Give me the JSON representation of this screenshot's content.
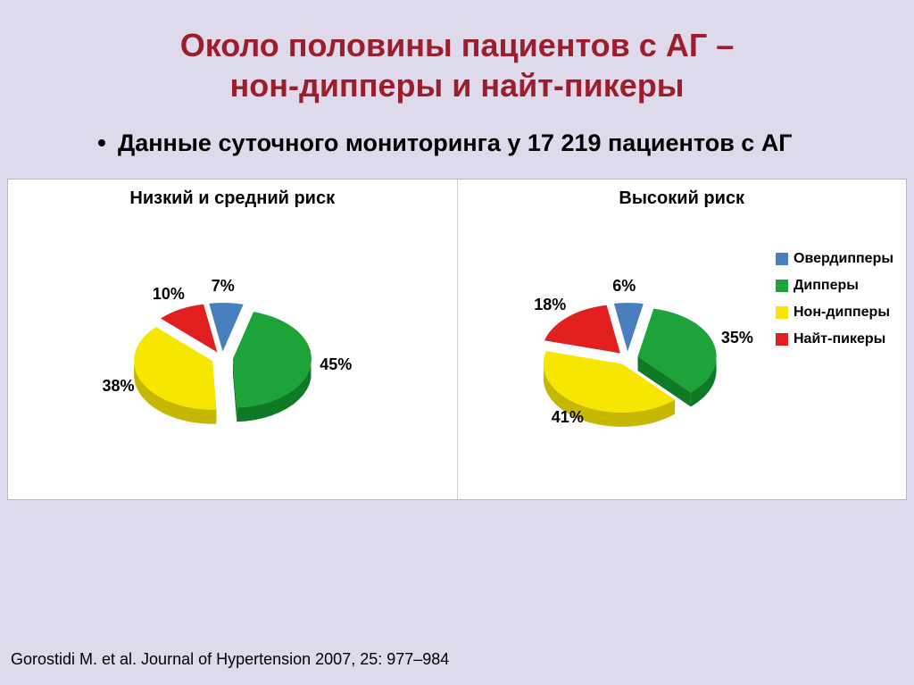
{
  "title_line1": "Около половины пациентов с АГ –",
  "title_line2": "нон-дипперы и найт-пикеры",
  "bullet": "Данные суточного мониторинга у 17 219 пациентов с АГ",
  "citation": "Gorostidi M. et al. Journal of Hypertension 2007, 25: 977–984",
  "colors": {
    "overdippers": "#4a7fbf",
    "dippers": "#1ea33a",
    "nondippers": "#f7e600",
    "nightpeakers": "#e21f1f",
    "slice_dark_overdippers": "#2f5a91",
    "slice_dark_dippers": "#0e7a25",
    "slice_dark_nondippers": "#c6b800",
    "slice_dark_nightpeakers": "#a31313",
    "panel_bg": "#ffffff",
    "page_bg": "#dedaec",
    "title_color": "#9c1d2c"
  },
  "chart_left": {
    "title": "Низкий и средний риск",
    "type": "pie-exploded-3d",
    "slices": [
      {
        "key": "overdippers",
        "value": 7,
        "label": "7%"
      },
      {
        "key": "dippers",
        "value": 45,
        "label": "45%"
      },
      {
        "key": "nondippers",
        "value": 38,
        "label": "38%"
      },
      {
        "key": "nightpeakers",
        "value": 10,
        "label": "10%"
      }
    ],
    "label_fontsize": 18,
    "label_fontweight": "bold"
  },
  "chart_right": {
    "title": "Высокий риск",
    "type": "pie-exploded-3d",
    "slices": [
      {
        "key": "overdippers",
        "value": 6,
        "label": "6%"
      },
      {
        "key": "dippers",
        "value": 35,
        "label": "35%"
      },
      {
        "key": "nondippers",
        "value": 41,
        "label": "41%"
      },
      {
        "key": "nightpeakers",
        "value": 18,
        "label": "18%"
      }
    ],
    "label_fontsize": 18,
    "label_fontweight": "bold"
  },
  "legend": {
    "items": [
      {
        "key": "overdippers",
        "label": "Овердипперы"
      },
      {
        "key": "dippers",
        "label": "Дипперы"
      },
      {
        "key": "nondippers",
        "label": "Нон-дипперы"
      },
      {
        "key": "nightpeakers",
        "label": "Найт-пикеры"
      }
    ],
    "fontsize": 16
  },
  "pie_geometry": {
    "radius": 88,
    "explode": 12,
    "depth": 16,
    "tilt_scaleY": 0.62,
    "start_angle_deg": -100
  }
}
